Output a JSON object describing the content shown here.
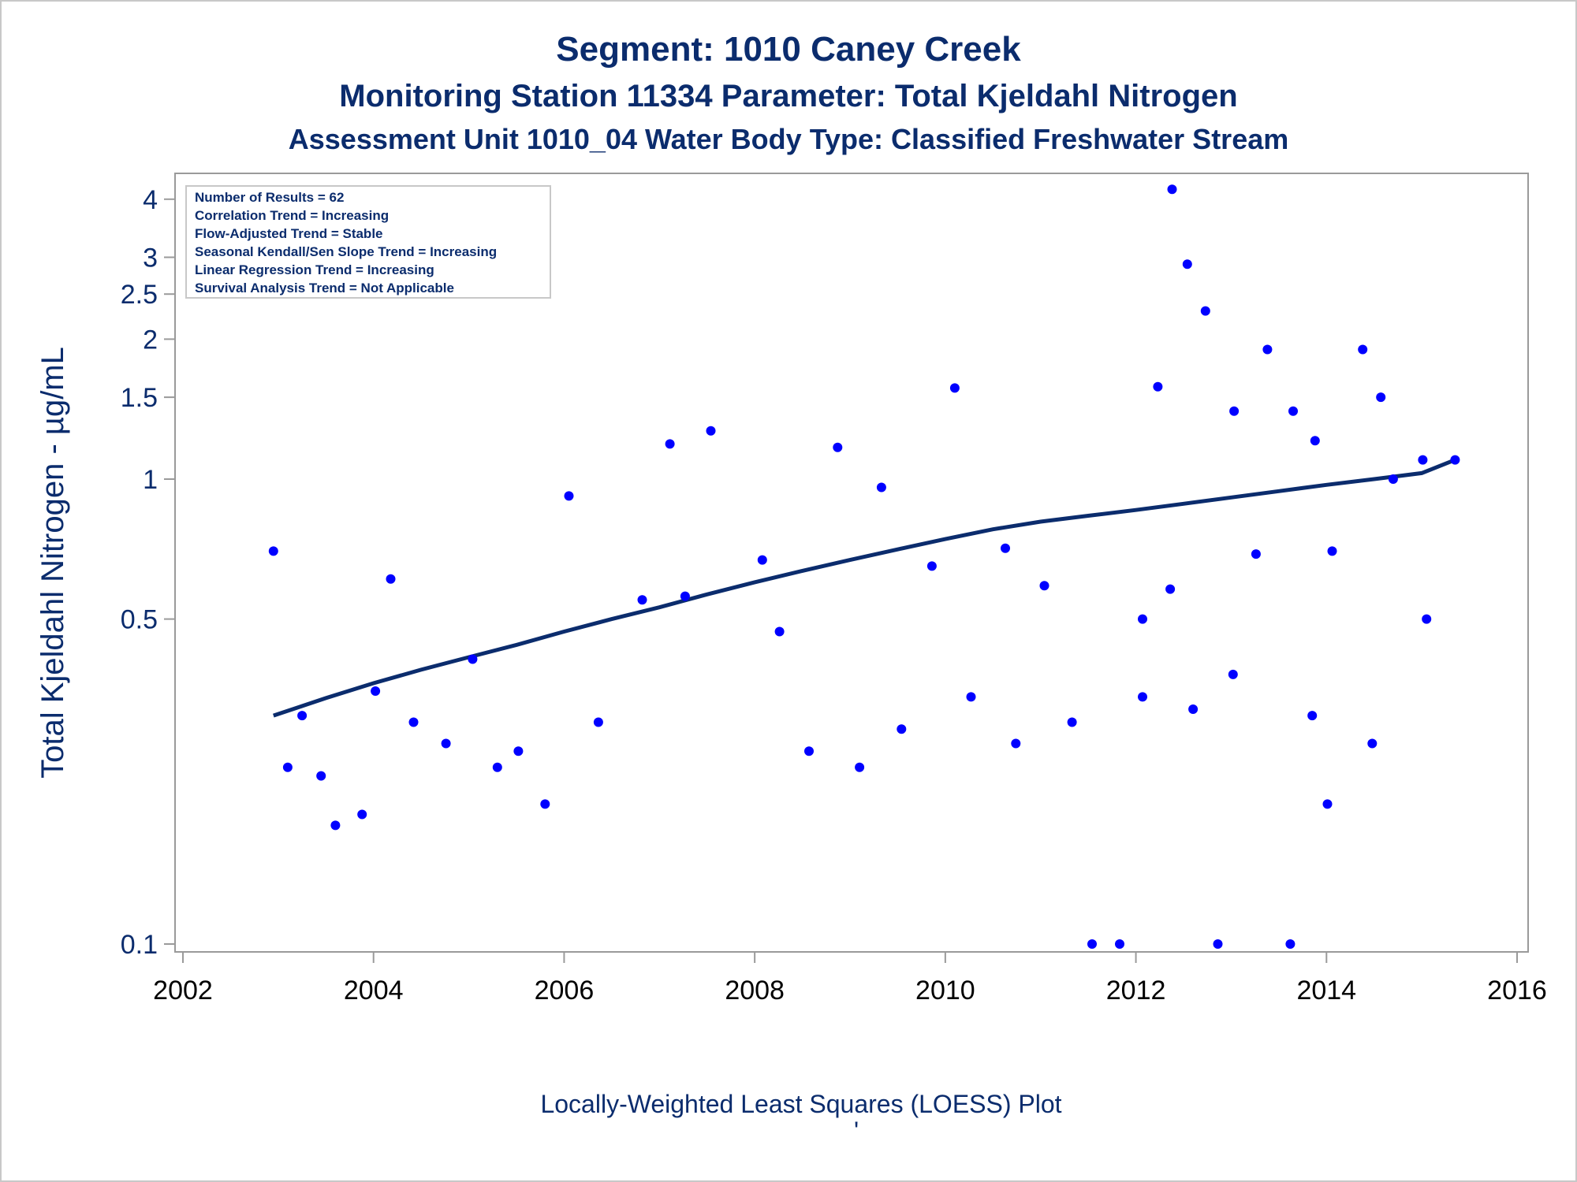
{
  "titles": {
    "line1": "Segment: 1010  Caney Creek",
    "line2": "Monitoring Station 11334 Parameter: Total Kjeldahl Nitrogen",
    "line3": "Assessment Unit 1010_04   Water Body Type: Classified Freshwater Stream"
  },
  "inset_box": [
    "Number of Results = 62",
    "Correlation Trend = Increasing",
    "Flow-Adjusted Trend = Stable",
    "Seasonal Kendall/Sen Slope Trend = Increasing",
    "Linear Regression Trend = Increasing",
    "Survival Analysis Trend = Not Applicable"
  ],
  "footnote": "Locally-Weighted Least Squares (LOESS) Plot",
  "footnote_mark": "'",
  "colors": {
    "text": "#0b2c6d",
    "points": "#0000ff",
    "line": "#0b2c6d",
    "frame": "#9a9a9a"
  },
  "chart_data": {
    "type": "scatter",
    "ylabel": "Total Kjeldahl Nitrogen -  µg/mL",
    "xlabel": "",
    "yscale": "log",
    "xlim": [
      2002,
      2016
    ],
    "ylim": [
      0.095,
      4.4
    ],
    "xticks": [
      "2002",
      "2004",
      "2006",
      "2008",
      "2010",
      "2012",
      "2014",
      "2016"
    ],
    "yticks": [
      {
        "value": 0.1,
        "label": "0.1"
      },
      {
        "value": 0.5,
        "label": "0.5"
      },
      {
        "value": 1,
        "label": "1"
      },
      {
        "value": 1.5,
        "label": "1.5"
      },
      {
        "value": 2,
        "label": "2"
      },
      {
        "value": 2.5,
        "label": "2.5"
      },
      {
        "value": 3,
        "label": "3"
      },
      {
        "value": 4,
        "label": "4"
      }
    ],
    "grid": false,
    "legend": "top-left",
    "series": [
      {
        "type": "scatter",
        "points": [
          [
            2002.95,
            0.7
          ],
          [
            2003.1,
            0.24
          ],
          [
            2003.25,
            0.31
          ],
          [
            2003.45,
            0.23
          ],
          [
            2003.6,
            0.18
          ],
          [
            2003.88,
            0.19
          ],
          [
            2004.02,
            0.35
          ],
          [
            2004.18,
            0.61
          ],
          [
            2004.42,
            0.3
          ],
          [
            2004.76,
            0.27
          ],
          [
            2005.04,
            0.41
          ],
          [
            2005.3,
            0.24
          ],
          [
            2005.52,
            0.26
          ],
          [
            2005.8,
            0.2
          ],
          [
            2006.05,
            0.92
          ],
          [
            2006.36,
            0.3
          ],
          [
            2006.82,
            0.55
          ],
          [
            2007.11,
            1.19
          ],
          [
            2007.27,
            0.56
          ],
          [
            2007.54,
            1.27
          ],
          [
            2008.08,
            0.67
          ],
          [
            2008.26,
            0.47
          ],
          [
            2008.57,
            0.26
          ],
          [
            2008.87,
            1.17
          ],
          [
            2009.1,
            0.24
          ],
          [
            2009.33,
            0.96
          ],
          [
            2009.54,
            0.29
          ],
          [
            2009.86,
            0.65
          ],
          [
            2010.1,
            1.57
          ],
          [
            2010.27,
            0.34
          ],
          [
            2010.63,
            0.71
          ],
          [
            2010.74,
            0.27
          ],
          [
            2011.04,
            0.59
          ],
          [
            2011.33,
            0.3
          ],
          [
            2011.54,
            0.1
          ],
          [
            2011.83,
            0.1
          ],
          [
            2012.07,
            0.5
          ],
          [
            2012.07,
            0.34
          ],
          [
            2012.23,
            1.58
          ],
          [
            2012.36,
            0.58
          ],
          [
            2012.38,
            4.2
          ],
          [
            2012.54,
            2.9
          ],
          [
            2012.6,
            0.32
          ],
          [
            2012.73,
            2.3
          ],
          [
            2012.86,
            0.1
          ],
          [
            2013.02,
            0.38
          ],
          [
            2013.03,
            1.4
          ],
          [
            2013.26,
            0.69
          ],
          [
            2013.38,
            1.9
          ],
          [
            2013.62,
            0.1
          ],
          [
            2013.65,
            1.4
          ],
          [
            2013.85,
            0.31
          ],
          [
            2013.88,
            1.21
          ],
          [
            2014.01,
            0.2
          ],
          [
            2014.06,
            0.7
          ],
          [
            2014.38,
            1.9
          ],
          [
            2014.48,
            0.27
          ],
          [
            2014.57,
            1.5
          ],
          [
            2014.7,
            1.0
          ],
          [
            2015.01,
            1.1
          ],
          [
            2015.05,
            0.5
          ],
          [
            2015.35,
            1.1
          ]
        ]
      },
      {
        "type": "line",
        "name": "",
        "points": [
          [
            2002.95,
            0.31
          ],
          [
            2003.25,
            0.325
          ],
          [
            2003.5,
            0.338
          ],
          [
            2004.0,
            0.364
          ],
          [
            2004.5,
            0.389
          ],
          [
            2005.0,
            0.414
          ],
          [
            2005.5,
            0.44
          ],
          [
            2006.0,
            0.47
          ],
          [
            2006.5,
            0.5
          ],
          [
            2007.0,
            0.53
          ],
          [
            2007.5,
            0.565
          ],
          [
            2008.0,
            0.6
          ],
          [
            2008.5,
            0.635
          ],
          [
            2009.0,
            0.67
          ],
          [
            2009.5,
            0.706
          ],
          [
            2010.0,
            0.743
          ],
          [
            2010.5,
            0.78
          ],
          [
            2011.0,
            0.81
          ],
          [
            2011.5,
            0.834
          ],
          [
            2012.0,
            0.858
          ],
          [
            2012.5,
            0.885
          ],
          [
            2013.0,
            0.913
          ],
          [
            2013.5,
            0.942
          ],
          [
            2014.0,
            0.972
          ],
          [
            2014.5,
            1.0
          ],
          [
            2015.0,
            1.03
          ],
          [
            2015.35,
            1.1
          ]
        ]
      }
    ]
  }
}
